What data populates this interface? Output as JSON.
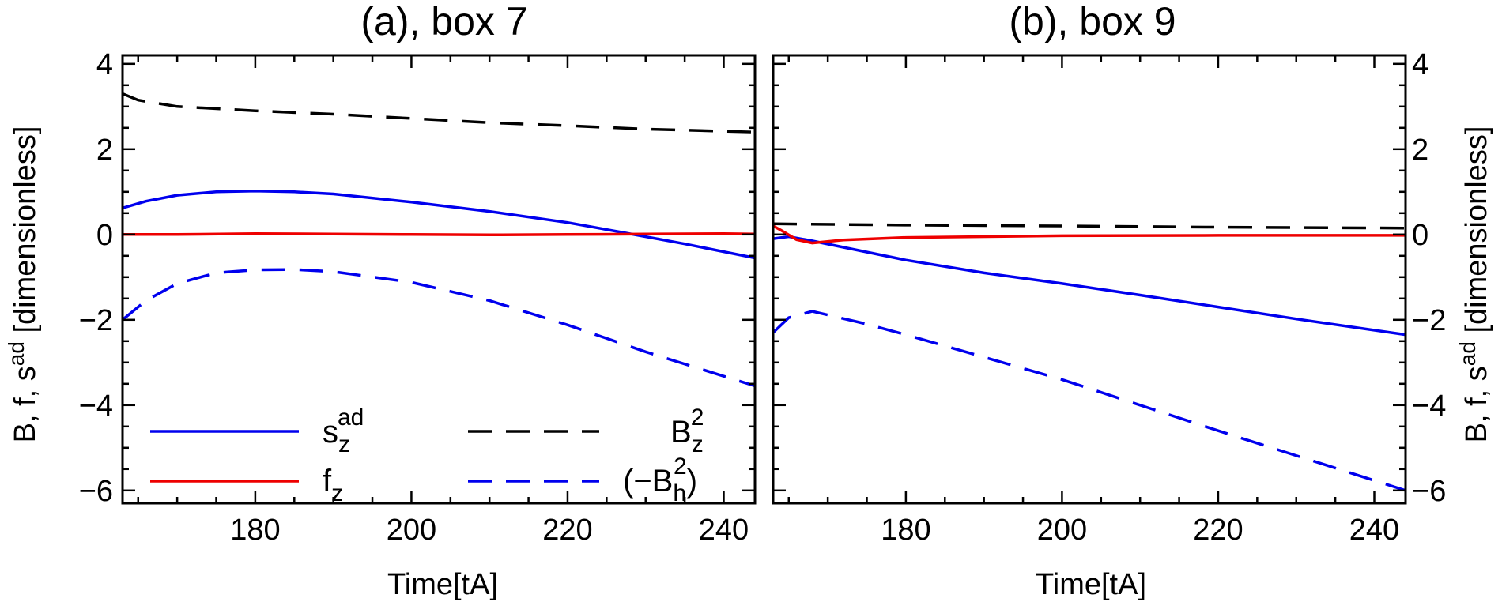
{
  "chart_data": [
    {
      "type": "line",
      "title": "(a), box 7",
      "xlabel": "Time[tA]",
      "ylabel": "B, f, s^ad  [dimensionless]",
      "xlim": [
        163,
        244
      ],
      "ylim": [
        -6.3,
        4.2
      ],
      "xticks": [
        180,
        200,
        220,
        240
      ],
      "yticks": [
        -6,
        -4,
        -2,
        0,
        2,
        4
      ],
      "series": [
        {
          "name": "s_z^ad",
          "color": "#0000ee",
          "dash": false,
          "x": [
            163,
            166,
            170,
            175,
            180,
            185,
            190,
            200,
            210,
            220,
            227,
            235,
            244
          ],
          "y": [
            0.62,
            0.78,
            0.92,
            1.0,
            1.02,
            1.0,
            0.95,
            0.76,
            0.54,
            0.28,
            0.05,
            -0.22,
            -0.55
          ]
        },
        {
          "name": "f_z",
          "color": "#ee0000",
          "dash": false,
          "x": [
            163,
            170,
            180,
            190,
            200,
            210,
            220,
            230,
            240,
            244
          ],
          "y": [
            0.0,
            0.0,
            0.02,
            0.01,
            0.0,
            -0.01,
            0.0,
            0.01,
            0.02,
            0.01
          ]
        },
        {
          "name": "B_z^2",
          "color": "#000000",
          "dash": true,
          "x": [
            163,
            165,
            170,
            180,
            190,
            200,
            210,
            220,
            230,
            244
          ],
          "y": [
            3.3,
            3.15,
            3.0,
            2.9,
            2.82,
            2.72,
            2.62,
            2.55,
            2.47,
            2.4
          ]
        },
        {
          "name": "(-B_h^2)",
          "color": "#0000ee",
          "dash": true,
          "x": [
            163,
            166,
            170,
            175,
            180,
            185,
            190,
            200,
            210,
            220,
            230,
            244
          ],
          "y": [
            -2.0,
            -1.55,
            -1.15,
            -0.9,
            -0.83,
            -0.82,
            -0.87,
            -1.12,
            -1.55,
            -2.12,
            -2.75,
            -3.55
          ]
        }
      ]
    },
    {
      "type": "line",
      "title": "(b), box 9",
      "xlabel": "Time[tA]",
      "ylabel": "B, f, s^ad  [dimensionless]",
      "xlim": [
        163,
        244
      ],
      "ylim": [
        -6.3,
        4.2
      ],
      "xticks": [
        180,
        200,
        220,
        240
      ],
      "yticks": [
        -6,
        -4,
        -2,
        0,
        2,
        4
      ],
      "series": [
        {
          "name": "s_z^ad",
          "color": "#0000ee",
          "dash": false,
          "x": [
            163,
            165,
            168,
            172,
            180,
            190,
            200,
            210,
            220,
            230,
            244
          ],
          "y": [
            -0.1,
            -0.05,
            -0.15,
            -0.3,
            -0.6,
            -0.9,
            -1.15,
            -1.42,
            -1.7,
            -1.98,
            -2.35
          ]
        },
        {
          "name": "f_z",
          "color": "#ee0000",
          "dash": false,
          "x": [
            163,
            164,
            166,
            168,
            172,
            180,
            200,
            220,
            244
          ],
          "y": [
            0.2,
            0.1,
            -0.12,
            -0.2,
            -0.13,
            -0.07,
            -0.03,
            -0.02,
            -0.02
          ]
        },
        {
          "name": "B_z^2",
          "color": "#000000",
          "dash": true,
          "x": [
            163,
            180,
            200,
            220,
            244
          ],
          "y": [
            0.25,
            0.22,
            0.2,
            0.17,
            0.15
          ]
        },
        {
          "name": "(-B_h^2)",
          "color": "#0000ee",
          "dash": true,
          "x": [
            163,
            165,
            168,
            175,
            180,
            200,
            220,
            244
          ],
          "y": [
            -2.3,
            -1.95,
            -1.8,
            -2.1,
            -2.35,
            -3.4,
            -4.6,
            -6.0
          ]
        }
      ]
    }
  ]
}
